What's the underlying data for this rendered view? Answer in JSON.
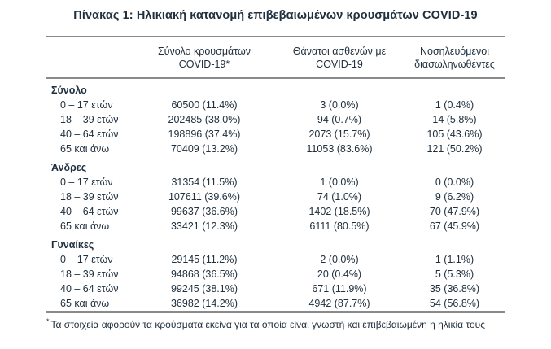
{
  "title": "Πίνακας 1: Ηλικιακή κατανομή επιβεβαιωμένων κρουσμάτων COVID-19",
  "table": {
    "columns": [
      {
        "line1": "Σύνολο κρουσμάτων",
        "line2": "COVID-19*"
      },
      {
        "line1": "Θάνατοι ασθενών με",
        "line2": "COVID-19"
      },
      {
        "line1": "Νοσηλευόμενοι",
        "line2": "διασωληνωθέντες"
      }
    ],
    "sections": [
      {
        "name": "Σύνολο",
        "rows": [
          {
            "label": "0 – 17 ετών",
            "cases": "60500 (11.4%)",
            "deaths": "3 (0.0%)",
            "intubated": "1 (0.4%)"
          },
          {
            "label": "18 – 39 ετών",
            "cases": "202485 (38.0%)",
            "deaths": "94 (0.7%)",
            "intubated": "14 (5.8%)"
          },
          {
            "label": "40 – 64 ετών",
            "cases": "198896 (37.4%)",
            "deaths": "2073 (15.7%)",
            "intubated": "105 (43.6%)"
          },
          {
            "label": "65 και άνω",
            "cases": "70409 (13.2%)",
            "deaths": "11053 (83.6%)",
            "intubated": "121 (50.2%)"
          }
        ]
      },
      {
        "name": "Άνδρες",
        "rows": [
          {
            "label": "0 – 17 ετών",
            "cases": "31354 (11.5%)",
            "deaths": "1 (0.0%)",
            "intubated": "0 (0.0%)"
          },
          {
            "label": "18 – 39 ετών",
            "cases": "107611 (39.6%)",
            "deaths": "74 (1.0%)",
            "intubated": "9 (6.2%)"
          },
          {
            "label": "40 – 64 ετών",
            "cases": "99637 (36.6%)",
            "deaths": "1402 (18.5%)",
            "intubated": "70 (47.9%)"
          },
          {
            "label": "65 και άνω",
            "cases": "33421 (12.3%)",
            "deaths": "6111 (80.5%)",
            "intubated": "67 (45.9%)"
          }
        ]
      },
      {
        "name": "Γυναίκες",
        "rows": [
          {
            "label": "0 – 17 ετών",
            "cases": "29145 (11.2%)",
            "deaths": "2 (0.0%)",
            "intubated": "1 (1.1%)"
          },
          {
            "label": "18 – 39 ετών",
            "cases": "94868 (36.5%)",
            "deaths": "20 (0.4%)",
            "intubated": "5 (5.3%)"
          },
          {
            "label": "40 – 64 ετών",
            "cases": "99245 (38.1%)",
            "deaths": "671 (11.9%)",
            "intubated": "35 (36.8%)"
          },
          {
            "label": "65 και άνω",
            "cases": "36982 (14.2%)",
            "deaths": "4942 (87.7%)",
            "intubated": "54 (56.8%)"
          }
        ]
      }
    ]
  },
  "footnote": {
    "marker": "*",
    "text": "Τα στοιχεία αφορούν τα κρούσματα εκείνα για τα οποία είναι γνωστή και επιβεβαιωμένη η ηλικία τους"
  }
}
